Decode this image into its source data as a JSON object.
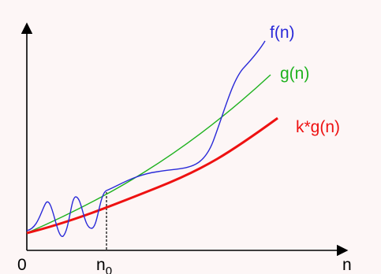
{
  "labels": {
    "f": "f(n)",
    "g": "g(n)",
    "kg": "k*g(n)",
    "origin": "0",
    "x_axis": "n",
    "n0_base": "n",
    "n0_sub": "0"
  },
  "colors": {
    "background": "#fdf6f6",
    "axis": "#000000",
    "f": "#2a2ad8",
    "g": "#1fb21f",
    "kg": "#ee1111",
    "marker": "#000000"
  }
}
